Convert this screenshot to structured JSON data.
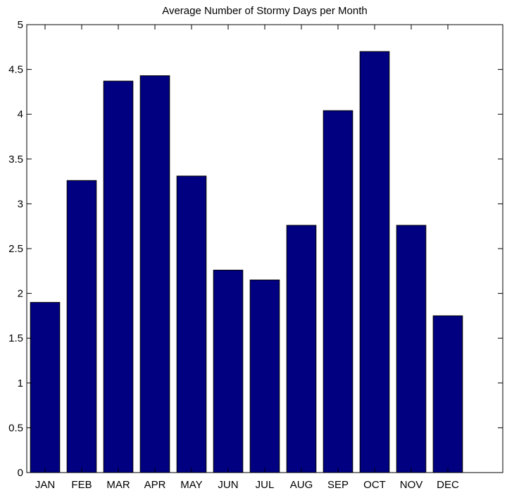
{
  "chart_data": {
    "type": "bar",
    "title": "Average Number of Stormy Days per Month",
    "xlabel": "",
    "ylabel": "",
    "categories": [
      "JAN",
      "FEB",
      "MAR",
      "APR",
      "MAY",
      "JUN",
      "JUL",
      "AUG",
      "SEP",
      "OCT",
      "NOV",
      "DEC"
    ],
    "values": [
      1.9,
      3.26,
      4.37,
      4.43,
      3.31,
      2.26,
      2.15,
      2.76,
      4.04,
      4.7,
      2.76,
      1.75
    ],
    "ylim": [
      0,
      5
    ],
    "xlim": [
      0.5,
      13.5
    ],
    "yticks": [
      0,
      0.5,
      1,
      1.5,
      2,
      2.5,
      3,
      3.5,
      4,
      4.5,
      5
    ],
    "ytick_labels": [
      "0",
      "0.5",
      "1",
      "1.5",
      "2",
      "2.5",
      "3",
      "3.5",
      "4",
      "4.5",
      "5"
    ],
    "grid": false,
    "colors": {
      "bar": "#000080",
      "edge": "#000000"
    }
  }
}
